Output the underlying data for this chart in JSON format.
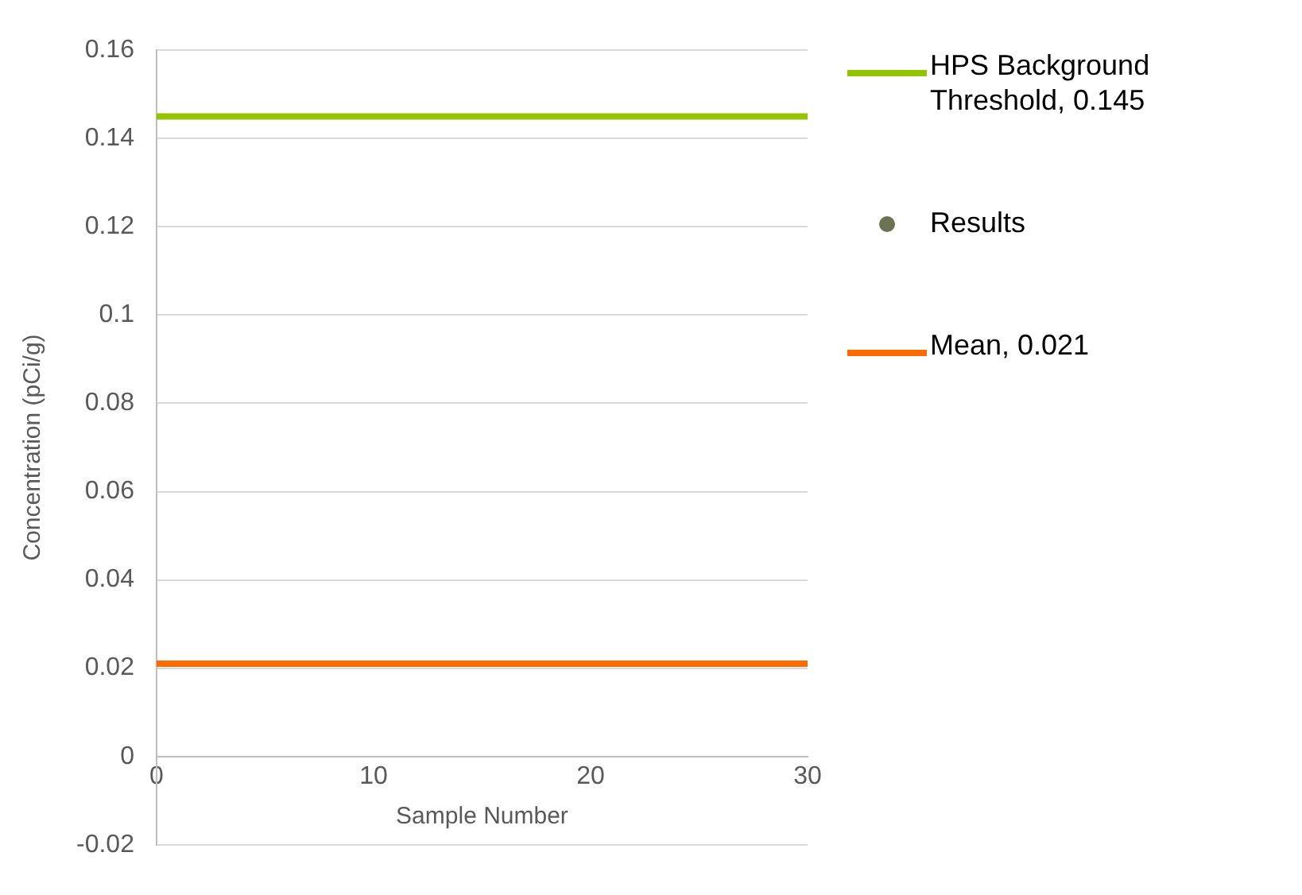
{
  "chart_data": {
    "type": "line",
    "xlabel": "Sample Number",
    "ylabel": "Concentration (pCi/g)",
    "x": [
      0,
      30
    ],
    "xlim": [
      0,
      30
    ],
    "xticks": [
      0,
      10,
      20,
      30
    ],
    "ylim": [
      -0.02,
      0.16
    ],
    "yticks": [
      -0.02,
      0,
      0.02,
      0.04,
      0.06,
      0.08,
      0.1,
      0.12,
      0.14,
      0.16
    ],
    "grid": "y",
    "legend": "right",
    "series": [
      {
        "name": "HPS Background Threshold, 0.145",
        "color": "#92c400",
        "values": [
          0.145,
          0.145
        ],
        "marker": "none"
      },
      {
        "name": "Results",
        "type": "scatter",
        "color": "#6b7353",
        "values": [
          null,
          null
        ],
        "marker": "circle"
      },
      {
        "name": "Mean, 0.021",
        "color": "#ff6a00",
        "values": [
          0.021,
          0.021
        ],
        "marker": "none"
      }
    ]
  }
}
